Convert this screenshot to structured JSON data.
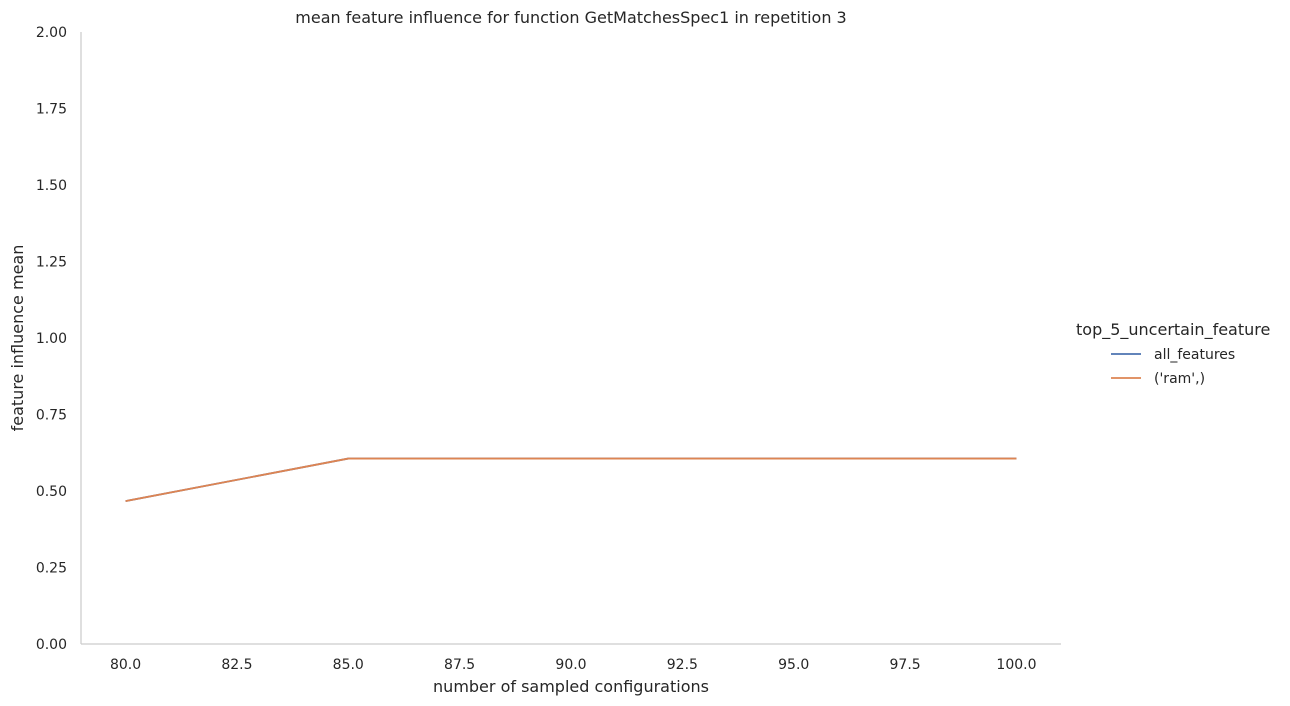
{
  "chart_data": {
    "type": "line",
    "title": "mean feature influence for function GetMatchesSpec1 in repetition 3",
    "xlabel": "number of sampled configurations",
    "ylabel": "feature influence mean",
    "xlim": [
      79,
      101
    ],
    "ylim": [
      0,
      2
    ],
    "xticks": [
      "80.0",
      "82.5",
      "85.0",
      "87.5",
      "90.0",
      "92.5",
      "95.0",
      "97.5",
      "100.0"
    ],
    "yticks": [
      "0.00",
      "0.25",
      "0.50",
      "0.75",
      "1.00",
      "1.25",
      "1.50",
      "1.75",
      "2.00"
    ],
    "grid": false,
    "legend": {
      "title": "top_5_uncertain_feature",
      "placement": "right"
    },
    "series": [
      {
        "name": "all_features",
        "color": "#4c72b0",
        "x": [
          80,
          85,
          90,
          95,
          100
        ],
        "y": [
          0.467,
          0.606,
          0.606,
          0.606,
          0.606
        ]
      },
      {
        "name": "('ram',)",
        "color": "#dd8452",
        "x": [
          80,
          85,
          90,
          95,
          100
        ],
        "y": [
          0.467,
          0.606,
          0.606,
          0.606,
          0.606
        ]
      }
    ]
  }
}
